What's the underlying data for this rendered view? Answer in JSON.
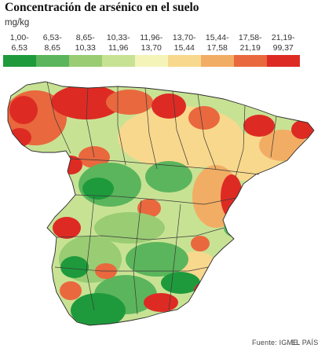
{
  "title": "Concentración de arsénico en el suelo",
  "unit": "mg/kg",
  "legend": [
    {
      "from": "1,00-",
      "to": "6,53",
      "color": "#1e9a3c"
    },
    {
      "from": "6,53-",
      "to": "8,65",
      "color": "#5bb55c"
    },
    {
      "from": "8,65-",
      "to": "10,33",
      "color": "#99cc73"
    },
    {
      "from": "10,33-",
      "to": "11,96",
      "color": "#c8e294"
    },
    {
      "from": "11,96-",
      "to": "13,70",
      "color": "#f4f4b8"
    },
    {
      "from": "13,70-",
      "to": "15,44",
      "color": "#f8d88c"
    },
    {
      "from": "15,44-",
      "to": "17,58",
      "color": "#f2ad64"
    },
    {
      "from": "17,58-",
      "to": "21,19",
      "color": "#e9683e"
    },
    {
      "from": "21,19-",
      "to": "99,37",
      "color": "#dd2b24"
    }
  ],
  "footer": {
    "source": "Fuente: IGME.",
    "credit": "EL PAÍS"
  }
}
